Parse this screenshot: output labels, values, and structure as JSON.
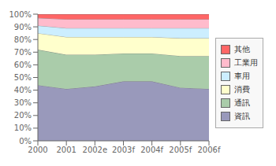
{
  "chart_data": {
    "type": "area",
    "stacked": true,
    "categories": [
      "2000",
      "2001",
      "2002e",
      "2003f",
      "2004f",
      "2005f",
      "2006f"
    ],
    "series": [
      {
        "name": "資訊",
        "color": "#9999bb",
        "values": [
          44,
          41,
          43,
          47,
          47,
          42,
          41
        ]
      },
      {
        "name": "通訊",
        "color": "#aaccaa",
        "values": [
          28,
          27,
          25,
          22,
          22,
          25,
          26
        ]
      },
      {
        "name": "消費",
        "color": "#ffffcc",
        "values": [
          13,
          14,
          14,
          13,
          13,
          14,
          14
        ]
      },
      {
        "name": "車用",
        "color": "#cceeff",
        "values": [
          6,
          7,
          7,
          7,
          7,
          8,
          8
        ]
      },
      {
        "name": "工業用",
        "color": "#ffbbcc",
        "values": [
          6,
          7,
          7,
          7,
          7,
          7,
          7
        ]
      },
      {
        "name": "其他",
        "color": "#ff6666",
        "values": [
          3,
          4,
          4,
          4,
          4,
          4,
          4
        ]
      }
    ],
    "ylim": [
      0,
      100
    ],
    "yticks": [
      {
        "value": 0,
        "label": "0%"
      },
      {
        "value": 10,
        "label": "10%"
      },
      {
        "value": 20,
        "label": "20%"
      },
      {
        "value": 30,
        "label": "30%"
      },
      {
        "value": 40,
        "label": "40%"
      },
      {
        "value": 50,
        "label": "50%"
      },
      {
        "value": 60,
        "label": "60%"
      },
      {
        "value": 70,
        "label": "70%"
      },
      {
        "value": 80,
        "label": "80%"
      },
      {
        "value": 90,
        "label": "90%"
      },
      {
        "value": 100,
        "label": "100%"
      }
    ],
    "grid": false,
    "legend": "right"
  }
}
